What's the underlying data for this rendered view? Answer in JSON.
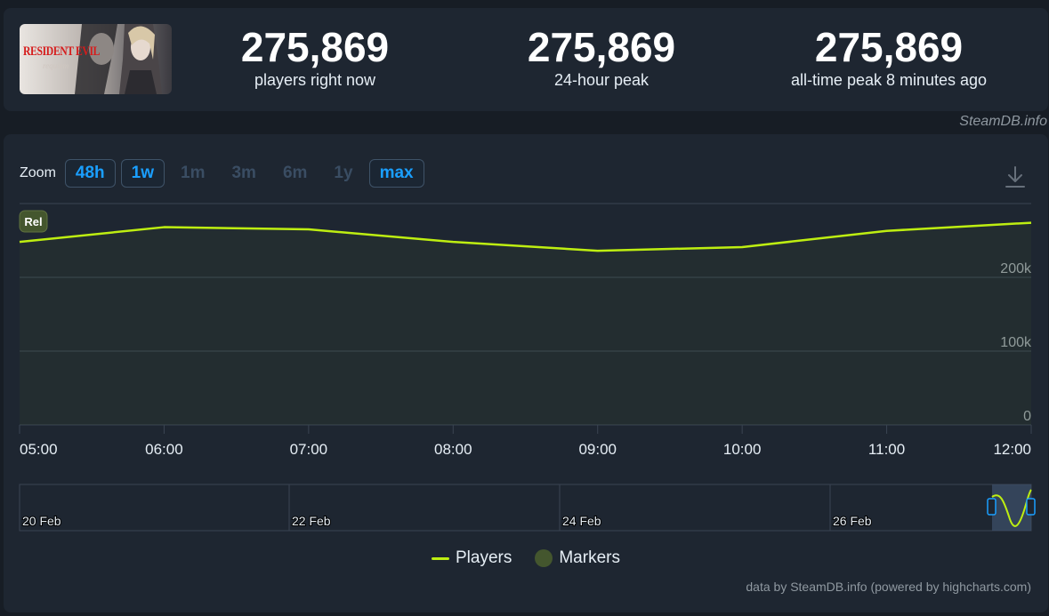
{
  "game": {
    "thumb_title": "RESIDENT EVIL",
    "thumb_subtitle": "requiem"
  },
  "stats": [
    {
      "value": "275,869",
      "label": "players right now"
    },
    {
      "value": "275,869",
      "label": "24-hour peak"
    },
    {
      "value": "275,869",
      "label": "all-time peak 8 minutes ago"
    }
  ],
  "brand": "SteamDB.info",
  "zoom": {
    "label": "Zoom",
    "options": [
      {
        "label": "48h",
        "active": true
      },
      {
        "label": "1w",
        "active": true
      },
      {
        "label": "1m",
        "active": false
      },
      {
        "label": "3m",
        "active": false
      },
      {
        "label": "6m",
        "active": false
      },
      {
        "label": "1y",
        "active": false
      },
      {
        "label": "max",
        "active": true
      }
    ]
  },
  "marker_label": "Rel",
  "navigator": {
    "labels": [
      "20 Feb",
      "22 Feb",
      "24 Feb",
      "26 Feb"
    ]
  },
  "legend": {
    "players": "Players",
    "markers": "Markers"
  },
  "credits": "data by SteamDB.info (powered by highcharts.com)",
  "colors": {
    "line": "#beee11",
    "accent": "#1a9fff",
    "marker": "#44562e",
    "background": "#1e2631"
  },
  "chart_data": {
    "type": "area",
    "x": [
      "05:00",
      "06:00",
      "07:00",
      "08:00",
      "09:00",
      "10:00",
      "11:00",
      "12:00"
    ],
    "series": [
      {
        "name": "Players",
        "values": [
          248000,
          268000,
          265000,
          248000,
          236000,
          241000,
          263000,
          274000
        ]
      }
    ],
    "y_ticks": [
      "0",
      "100k",
      "200k"
    ],
    "ylim": [
      0,
      300000
    ],
    "grid": true,
    "legend_position": "bottom"
  }
}
